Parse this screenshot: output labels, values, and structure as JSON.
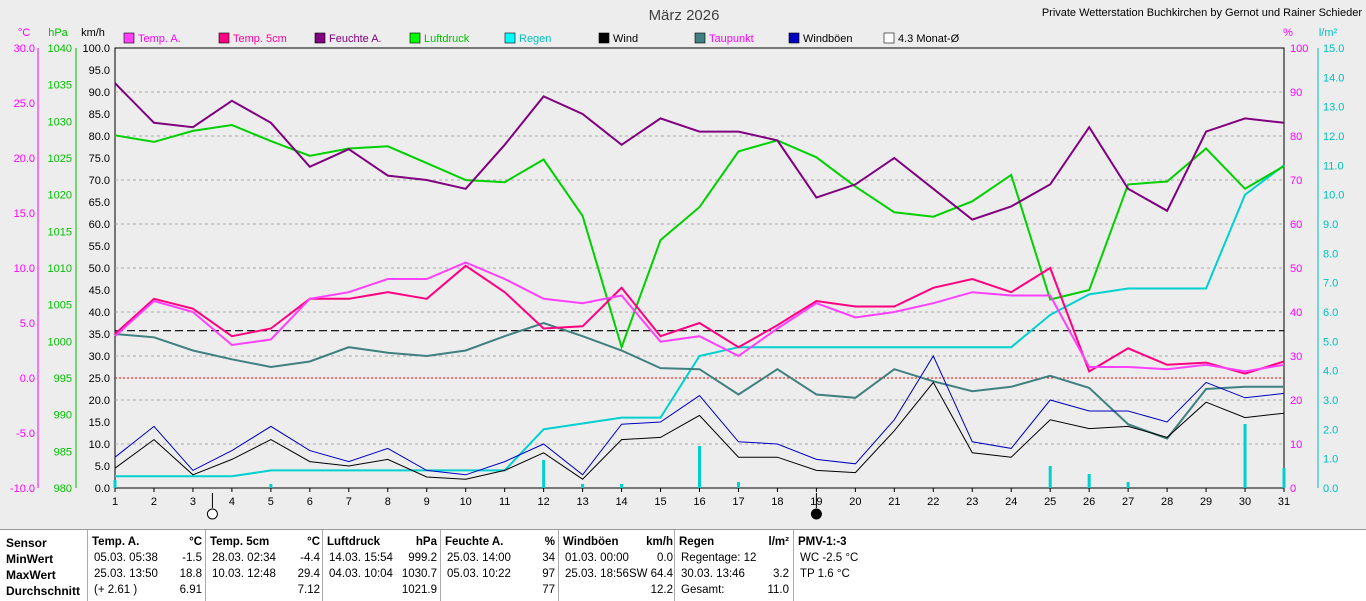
{
  "header": {
    "title": "März 2026",
    "station": "Private Wetterstation Buchkirchen by Gernot und Rainer Schieder"
  },
  "axes": {
    "temp": {
      "unit": "°C",
      "color": "#ff00ff",
      "ticks": [
        "30.0",
        "25.0",
        "20.0",
        "15.0",
        "10.0",
        "5.0",
        "0.0",
        "-5.0",
        "-10.0"
      ]
    },
    "pressure": {
      "unit": "hPa",
      "color": "#00c000",
      "ticks": [
        "1040",
        "1035",
        "1030",
        "1025",
        "1020",
        "1015",
        "1010",
        "1005",
        "1000",
        "995",
        "990",
        "985",
        "980"
      ]
    },
    "wind": {
      "unit": "km/h",
      "color": "#000000",
      "ticks": [
        "100.0",
        "95.0",
        "90.0",
        "85.0",
        "80.0",
        "75.0",
        "70.0",
        "65.0",
        "60.0",
        "55.0",
        "50.0",
        "45.0",
        "40.0",
        "35.0",
        "30.0",
        "25.0",
        "20.0",
        "15.0",
        "10.0",
        "5.0",
        "0.0"
      ]
    },
    "humidity": {
      "unit": "%",
      "color": "#ff00ff",
      "ticks": [
        "100",
        "90",
        "80",
        "70",
        "60",
        "50",
        "40",
        "30",
        "20",
        "10",
        "0"
      ]
    },
    "rain": {
      "unit": "l/m²",
      "color": "#00c0c0",
      "ticks": [
        "15.0",
        "14.0",
        "13.0",
        "12.0",
        "11.0",
        "10.0",
        "9.0",
        "8.0",
        "7.0",
        "6.0",
        "5.0",
        "4.0",
        "3.0",
        "2.0",
        "1.0",
        "0.0"
      ]
    },
    "days": [
      "1",
      "2",
      "3",
      "4",
      "5",
      "6",
      "7",
      "8",
      "9",
      "10",
      "11",
      "12",
      "13",
      "14",
      "15",
      "16",
      "17",
      "18",
      "19",
      "20",
      "21",
      "22",
      "23",
      "24",
      "25",
      "26",
      "27",
      "28",
      "29",
      "30",
      "31"
    ]
  },
  "legend": [
    {
      "label": "Temp. A.",
      "color": "#ff40ff",
      "textColor": "#ff00ff"
    },
    {
      "label": "Temp. 5cm",
      "color": "#ff0080",
      "textColor": "#ff00a0"
    },
    {
      "label": "Feuchte A.",
      "color": "#800080",
      "textColor": "#800080"
    },
    {
      "label": "Luftdruck",
      "color": "#00ff00",
      "textColor": "#00c000"
    },
    {
      "label": "Regen",
      "color": "#00ffff",
      "textColor": "#00c0c0"
    },
    {
      "label": "Wind",
      "color": "#000000",
      "textColor": "#000000"
    },
    {
      "label": "Taupunkt",
      "color": "#408080",
      "textColor": "#ff00ff"
    },
    {
      "label": "Windböen",
      "color": "#0000c0",
      "textColor": "#000000"
    },
    {
      "label": "4.3 Monat-Ø",
      "color": "#ffffff",
      "textColor": "#000000"
    }
  ],
  "chart_data": {
    "type": "line",
    "x": [
      1,
      2,
      3,
      4,
      5,
      6,
      7,
      8,
      9,
      10,
      11,
      12,
      13,
      14,
      15,
      16,
      17,
      18,
      19,
      20,
      21,
      22,
      23,
      24,
      25,
      26,
      27,
      28,
      29,
      30,
      31
    ],
    "series": [
      {
        "name": "Temp. A.",
        "unit": "°C",
        "values": [
          3.8,
          7.0,
          6.0,
          3.0,
          3.5,
          7.2,
          7.8,
          9.0,
          9.0,
          10.5,
          9.0,
          7.2,
          6.8,
          7.5,
          3.3,
          3.8,
          2.0,
          4.5,
          6.8,
          5.5,
          6.0,
          6.8,
          7.8,
          7.5,
          7.5,
          1.0,
          1.0,
          0.8,
          1.2,
          0.6,
          1.2
        ]
      },
      {
        "name": "Temp. 5cm",
        "unit": "°C",
        "values": [
          4.0,
          7.2,
          6.3,
          3.8,
          4.5,
          7.2,
          7.2,
          7.8,
          7.2,
          10.2,
          7.8,
          4.5,
          4.7,
          8.2,
          3.8,
          5.0,
          2.8,
          4.8,
          7.0,
          6.5,
          6.5,
          8.2,
          9.0,
          7.8,
          10.0,
          0.6,
          2.7,
          1.2,
          1.4,
          0.4,
          1.5
        ]
      },
      {
        "name": "Feuchte A.",
        "unit": "%",
        "values": [
          92,
          83,
          82,
          88,
          83,
          73,
          77,
          71,
          70,
          68,
          78,
          89,
          85,
          78,
          84,
          81,
          81,
          79,
          66,
          69,
          75,
          68,
          61,
          64,
          69,
          82,
          68,
          63,
          81,
          84,
          83
        ]
      },
      {
        "name": "Luftdruck",
        "unit": "hPa",
        "values": [
          1028.1,
          1027.2,
          1028.7,
          1029.5,
          1027.3,
          1025.3,
          1026.3,
          1026.6,
          1024.3,
          1022.0,
          1021.7,
          1024.8,
          1017.1,
          999.2,
          1013.8,
          1018.3,
          1025.9,
          1027.4,
          1025.1,
          1021.1,
          1017.6,
          1017.0,
          1019.1,
          1022.7,
          1005.7,
          1007.0,
          1021.4,
          1021.8,
          1026.3,
          1020.8,
          1023.9
        ]
      },
      {
        "name": "Regen",
        "unit": "l/m²",
        "cumulative": true,
        "values": [
          0.4,
          0.4,
          0.4,
          0.4,
          0.6,
          0.6,
          0.6,
          0.6,
          0.6,
          0.6,
          0.6,
          2.0,
          2.2,
          2.4,
          2.4,
          4.5,
          4.8,
          4.8,
          4.8,
          4.8,
          4.8,
          4.8,
          4.8,
          4.8,
          5.9,
          6.6,
          6.8,
          6.8,
          6.8,
          10.0,
          11.0
        ]
      },
      {
        "name": "Regen (Tag)",
        "unit": "l/m²",
        "bars": true,
        "values": [
          0.4,
          0,
          0,
          0,
          0.2,
          0,
          0,
          0,
          0,
          0,
          0,
          1.4,
          0.2,
          0.2,
          0,
          2.1,
          0.3,
          0,
          0,
          0,
          0,
          0,
          0,
          0,
          1.1,
          0.7,
          0.3,
          0,
          0,
          3.2,
          1.0
        ]
      },
      {
        "name": "Wind",
        "unit": "km/h",
        "values": [
          4.5,
          11.0,
          3.0,
          6.5,
          11.0,
          6.0,
          5.0,
          6.5,
          2.5,
          2.0,
          4.0,
          8.0,
          2.0,
          11.0,
          11.5,
          16.5,
          7.0,
          7.0,
          4.0,
          3.5,
          13.0,
          24.0,
          8.0,
          7.0,
          15.5,
          13.5,
          14.0,
          11.5,
          19.5,
          16.0,
          17.0
        ]
      },
      {
        "name": "Taupunkt",
        "unit": "°C",
        "values": [
          4.0,
          3.7,
          2.5,
          1.7,
          1.0,
          1.5,
          2.8,
          2.3,
          2.0,
          2.5,
          3.8,
          5.0,
          3.8,
          2.5,
          0.9,
          0.8,
          -1.5,
          0.8,
          -1.5,
          -1.8,
          0.8,
          -0.3,
          -1.2,
          -0.8,
          0.2,
          -0.9,
          -4.2,
          -5.5,
          -1.0,
          -0.8,
          -0.8
        ]
      },
      {
        "name": "Windböen",
        "unit": "km/h",
        "values": [
          7.0,
          14.0,
          4.0,
          8.5,
          14.0,
          8.5,
          6.0,
          9.0,
          4.0,
          3.0,
          6.0,
          10.0,
          3.0,
          14.5,
          15.0,
          21.0,
          10.5,
          10.0,
          6.5,
          5.5,
          15.5,
          30.0,
          10.5,
          9.0,
          20.0,
          17.5,
          17.5,
          15.0,
          24.0,
          20.5,
          21.5
        ]
      }
    ],
    "reference_line": {
      "name": "4.3 Monat-Ø",
      "unit": "°C",
      "value": 4.3
    },
    "zero_line": {
      "unit": "°C",
      "value": 0.0
    },
    "moon_markers": [
      {
        "day": 3.5,
        "phase": "full"
      },
      {
        "day": 19,
        "phase": "new"
      }
    ],
    "ylim_temp": [
      -10,
      30
    ],
    "ylim_pressure": [
      980,
      1040
    ],
    "ylim_wind": [
      0,
      100
    ],
    "ylim_humidity": [
      0,
      100
    ],
    "ylim_rain": [
      0,
      15
    ],
    "grid": true
  },
  "table": {
    "row_labels": [
      "Sensor",
      "MinWert",
      "MaxWert",
      "Durchschnitt"
    ],
    "columns": [
      {
        "title": "Temp. A.",
        "unit": "°C",
        "rows": [
          [
            "05.03.  05:38",
            "-1.5"
          ],
          [
            "25.03.  13:50",
            "18.8"
          ],
          [
            "(+ 2.61 )",
            "6.91"
          ]
        ]
      },
      {
        "title": "Temp. 5cm",
        "unit": "°C",
        "rows": [
          [
            "28.03.  02:34",
            "-4.4"
          ],
          [
            "10.03.  12:48",
            "29.4"
          ],
          [
            "",
            "7.12"
          ]
        ]
      },
      {
        "title": "Luftdruck",
        "unit": "hPa",
        "rows": [
          [
            "14.03.  15:54",
            "999.2"
          ],
          [
            "04.03.  10:04",
            "1030.7"
          ],
          [
            "",
            "1021.9"
          ]
        ]
      },
      {
        "title": "Feuchte A.",
        "unit": "%",
        "rows": [
          [
            "25.03.  14:00",
            "34"
          ],
          [
            "05.03.  10:22",
            "97"
          ],
          [
            "",
            "77"
          ]
        ]
      },
      {
        "title": "Windböen",
        "unit": "km/h",
        "rows": [
          [
            "01.03.  00:00",
            "0.0"
          ],
          [
            "25.03.  18:56SW",
            "64.4"
          ],
          [
            "",
            "12.2"
          ]
        ]
      },
      {
        "title": "Regen",
        "unit": "l/m²",
        "rows": [
          [
            "Regentage: 12",
            ""
          ],
          [
            "30.03.  13:46",
            "3.2"
          ],
          [
            "Gesamt:",
            "11.0"
          ]
        ]
      },
      {
        "title": "PMV-1:-3",
        "unit": "",
        "rows": [
          [
            "WC -2.5 °C",
            ""
          ],
          [
            "TP 1.6 °C",
            ""
          ],
          [
            "",
            ""
          ]
        ]
      }
    ]
  }
}
